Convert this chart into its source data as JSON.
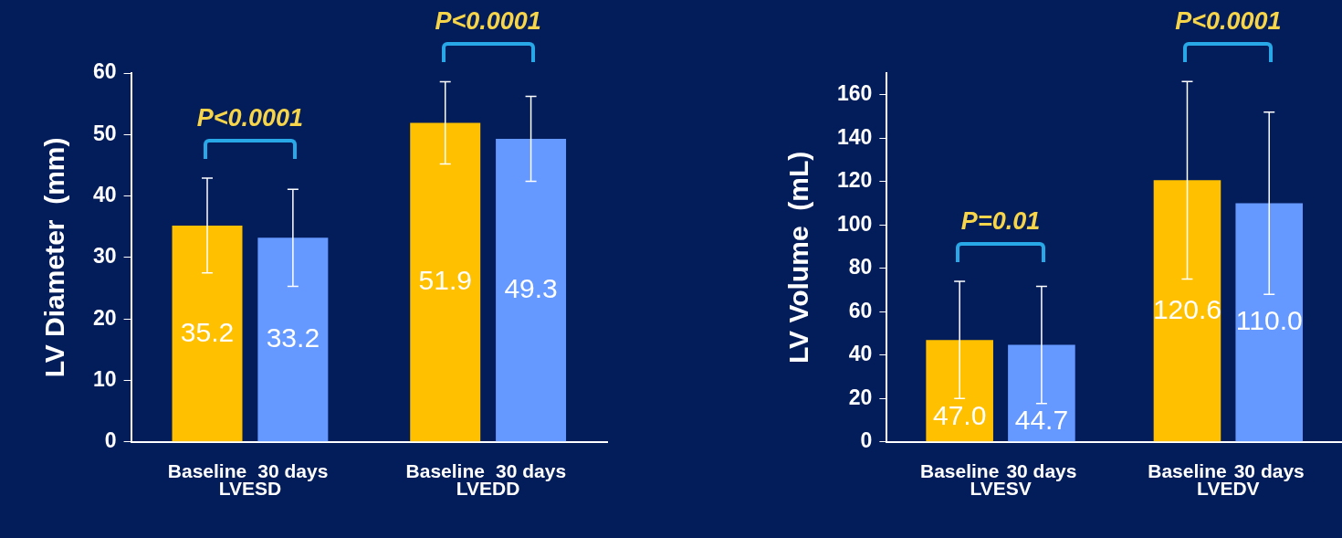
{
  "chart_data": [
    {
      "type": "bar",
      "ylabel": "LV Diameter  (mm)",
      "categories": [
        "LVESD",
        "LVEDD"
      ],
      "series": [
        {
          "name": "Baseline",
          "color": "#ffc000",
          "values": [
            35.2,
            51.9
          ],
          "errors": [
            7.7,
            6.7
          ],
          "value_labels": [
            "35.2",
            "51.9"
          ]
        },
        {
          "name": "30 days",
          "color": "#6699ff",
          "values": [
            33.2,
            49.3
          ],
          "errors": [
            7.9,
            6.9
          ],
          "value_labels": [
            "33.2",
            "49.3"
          ]
        }
      ],
      "ylim": [
        0,
        60
      ],
      "yticks": [
        0,
        10,
        20,
        30,
        40,
        50,
        60
      ],
      "grid": false,
      "legend": false,
      "annotations": [
        "P<0.0001",
        "P<0.0001"
      ]
    },
    {
      "type": "bar",
      "ylabel": "LV Volume  (mL)",
      "categories": [
        "LVESV",
        "LVEDV"
      ],
      "series": [
        {
          "name": "Baseline",
          "color": "#ffc000",
          "values": [
            47.0,
            120.6
          ],
          "errors": [
            27,
            45.5
          ],
          "value_labels": [
            "47.0",
            "120.6"
          ]
        },
        {
          "name": "30 days",
          "color": "#6699ff",
          "values": [
            44.7,
            110.0
          ],
          "errors": [
            27,
            42
          ],
          "value_labels": [
            "44.7",
            "110.0"
          ]
        }
      ],
      "ylim": [
        0,
        170
      ],
      "yticks": [
        0,
        20,
        40,
        60,
        80,
        100,
        120,
        140,
        160
      ],
      "grid": false,
      "legend": false,
      "annotations": [
        "P=0.01",
        "P<0.0001"
      ]
    }
  ]
}
